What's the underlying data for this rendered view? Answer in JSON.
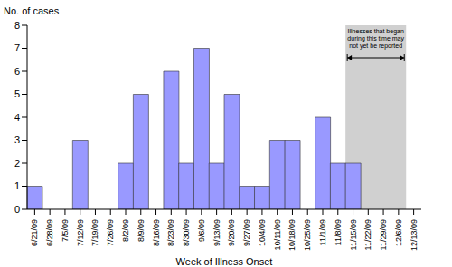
{
  "chart_data": {
    "type": "bar",
    "y_label": "No. of cases",
    "x_label": "Week of Illness Onset",
    "categories": [
      "6/21/09",
      "6/28/09",
      "7/5/09",
      "7/12/09",
      "7/19/09",
      "7/26/09",
      "8/2/09",
      "8/9/09",
      "8/16/09",
      "8/23/09",
      "8/30/09",
      "9/6/09",
      "9/13/09",
      "9/20/09",
      "9/27/09",
      "10/4/09",
      "10/11/09",
      "10/18/09",
      "10/25/09",
      "11/1/09",
      "11/8/09",
      "11/15/09",
      "11/22/09",
      "11/29/09",
      "12/6/09",
      "12/13/09"
    ],
    "values": [
      1,
      0,
      0,
      3,
      0,
      0,
      2,
      5,
      0,
      6,
      2,
      7,
      2,
      5,
      1,
      1,
      3,
      3,
      0,
      4,
      2,
      2,
      0,
      0,
      0,
      0
    ],
    "color": "#9999ff",
    "ylim": [
      0,
      8
    ],
    "yticks": [
      0,
      1,
      2,
      3,
      4,
      5,
      6,
      7,
      8
    ],
    "grid": false,
    "annotations": [
      {
        "text": "Illnesses that began during this time may not yet be reported",
        "x_start": "11/15/09",
        "x_end": "12/6/09",
        "color": "#c0c0c0"
      }
    ]
  }
}
